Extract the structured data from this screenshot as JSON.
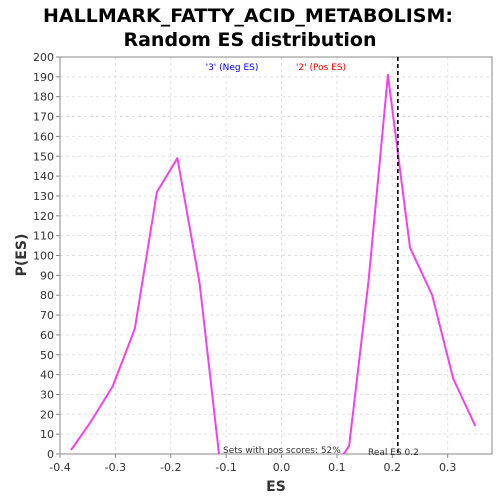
{
  "chart_data": {
    "type": "line",
    "title": "HALLMARK_FATTY_ACID_METABOLISM:",
    "subtitle": "Random ES distribution",
    "xlabel": "ES",
    "ylabel": "P(ES)",
    "xlim": [
      -0.4,
      0.38
    ],
    "ylim": [
      0,
      200
    ],
    "x_ticks": [
      -0.4,
      -0.3,
      -0.2,
      -0.1,
      0.0,
      0.1,
      0.2,
      0.3
    ],
    "x_tick_labels": [
      "-0.4",
      "-0.3",
      "-0.2",
      "-0.1",
      "0.0",
      "0.1",
      "0.2",
      "0.3"
    ],
    "y_ticks": [
      0,
      10,
      20,
      30,
      40,
      50,
      60,
      70,
      80,
      90,
      100,
      110,
      120,
      130,
      140,
      150,
      160,
      170,
      180,
      190,
      200
    ],
    "grid": true,
    "legend": [
      {
        "label": "'3' (Neg ES)",
        "color": "#0000ff"
      },
      {
        "label": "'2' (Pos ES)",
        "color": "#ff0000"
      }
    ],
    "line_color": "#ee44ee",
    "series": [
      {
        "x": [
          -0.38,
          -0.345,
          -0.305,
          -0.265,
          -0.225,
          -0.188,
          -0.148,
          -0.113
        ],
        "y": [
          2,
          16,
          34,
          63,
          132,
          149,
          86,
          0
        ]
      },
      {
        "x": [
          0.112,
          0.122,
          0.157,
          0.192,
          0.232,
          0.272,
          0.31,
          0.35
        ],
        "y": [
          0,
          4,
          87,
          191,
          104,
          80,
          38,
          14
        ]
      }
    ],
    "real_es": 0.21,
    "annotations": {
      "pos_scores": "Sets with pos scores: 52%",
      "real_es": "Real ES 0.2"
    }
  }
}
